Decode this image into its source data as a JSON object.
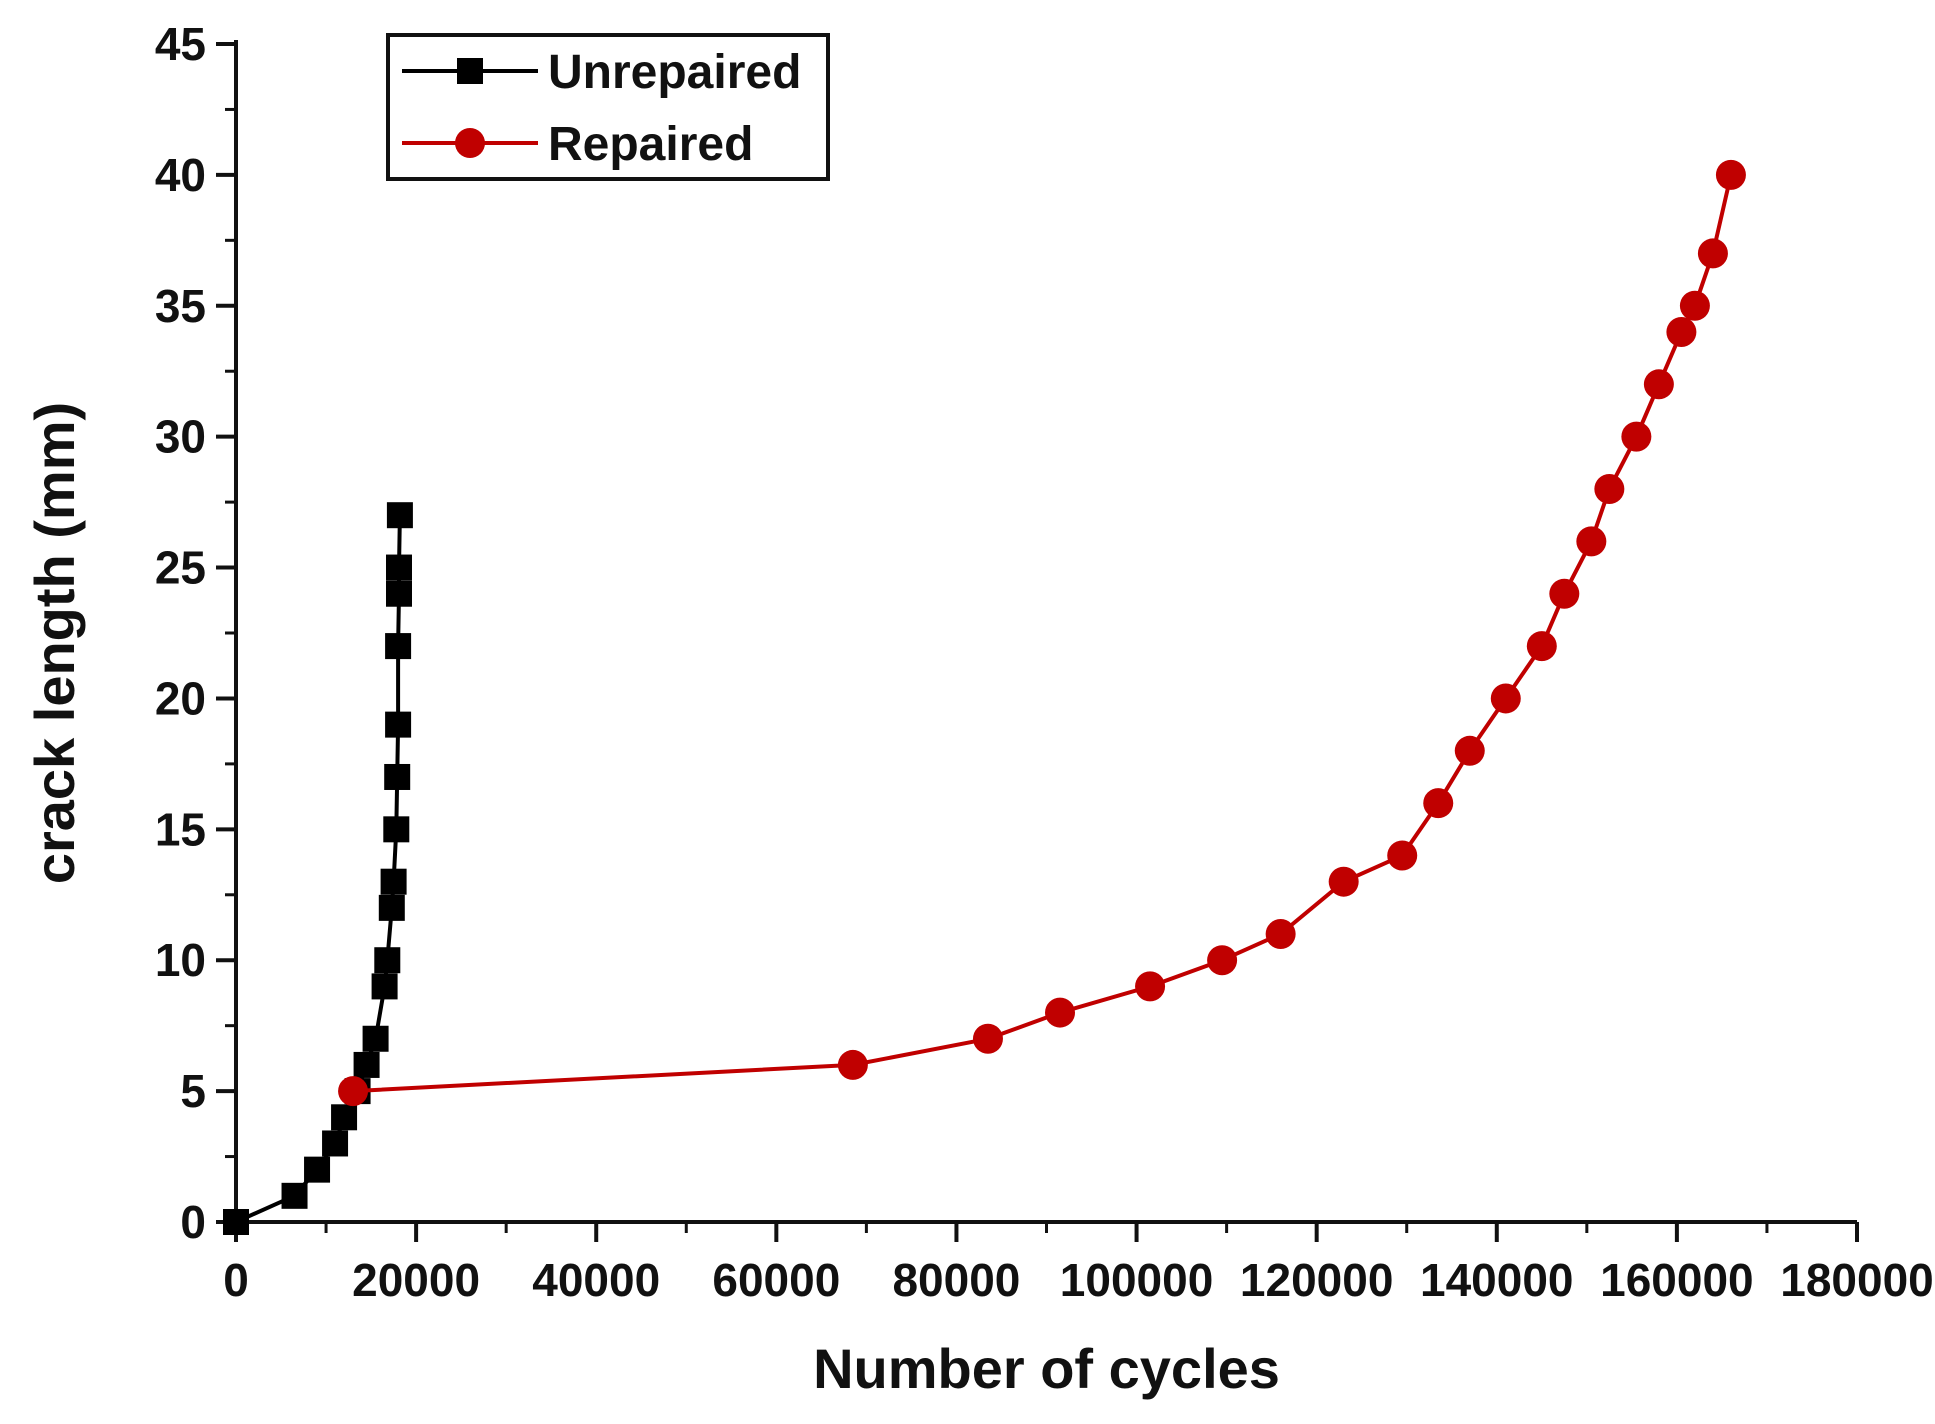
{
  "chart_data": {
    "type": "line",
    "title": "",
    "xlabel": "Number of cycles",
    "ylabel": "crack length (mm)",
    "xlim": [
      0,
      180000
    ],
    "ylim": [
      0,
      45
    ],
    "xticks": [
      0,
      20000,
      40000,
      60000,
      80000,
      100000,
      120000,
      140000,
      160000,
      180000
    ],
    "yticks": [
      0,
      5,
      10,
      15,
      20,
      25,
      30,
      35,
      40,
      45
    ],
    "xtick_labels": [
      "0",
      "20000",
      "40000",
      "60000",
      "80000",
      "100000",
      "120000",
      "140000",
      "160000",
      "180000"
    ],
    "ytick_labels": [
      "0",
      "5",
      "10",
      "15",
      "20",
      "25",
      "30",
      "35",
      "40",
      "45"
    ],
    "grid": false,
    "legend": {
      "position": "top-left",
      "entries": [
        "Unrepaired",
        "Repaired"
      ]
    },
    "series": [
      {
        "name": "Unrepaired",
        "color": "#000000",
        "marker": "square",
        "points": [
          {
            "x": 0,
            "y": 0
          },
          {
            "x": 6500,
            "y": 1
          },
          {
            "x": 9000,
            "y": 2
          },
          {
            "x": 11000,
            "y": 3
          },
          {
            "x": 12000,
            "y": 4
          },
          {
            "x": 13500,
            "y": 5
          },
          {
            "x": 14500,
            "y": 6
          },
          {
            "x": 15500,
            "y": 7
          },
          {
            "x": 16500,
            "y": 9
          },
          {
            "x": 16800,
            "y": 10
          },
          {
            "x": 17300,
            "y": 12
          },
          {
            "x": 17500,
            "y": 13
          },
          {
            "x": 17800,
            "y": 15
          },
          {
            "x": 17900,
            "y": 17
          },
          {
            "x": 18000,
            "y": 19
          },
          {
            "x": 18000,
            "y": 22
          },
          {
            "x": 18100,
            "y": 24
          },
          {
            "x": 18100,
            "y": 25
          },
          {
            "x": 18200,
            "y": 27
          }
        ]
      },
      {
        "name": "Repaired",
        "color": "#c00000",
        "marker": "circle",
        "points": [
          {
            "x": 13000,
            "y": 5
          },
          {
            "x": 68500,
            "y": 6
          },
          {
            "x": 83500,
            "y": 7
          },
          {
            "x": 91500,
            "y": 8
          },
          {
            "x": 101500,
            "y": 9
          },
          {
            "x": 109500,
            "y": 10
          },
          {
            "x": 116000,
            "y": 11
          },
          {
            "x": 123000,
            "y": 13
          },
          {
            "x": 129500,
            "y": 14
          },
          {
            "x": 133500,
            "y": 16
          },
          {
            "x": 137000,
            "y": 18
          },
          {
            "x": 141000,
            "y": 20
          },
          {
            "x": 145000,
            "y": 22
          },
          {
            "x": 147500,
            "y": 24
          },
          {
            "x": 150500,
            "y": 26
          },
          {
            "x": 152500,
            "y": 28
          },
          {
            "x": 155500,
            "y": 30
          },
          {
            "x": 158000,
            "y": 32
          },
          {
            "x": 160500,
            "y": 34
          },
          {
            "x": 162000,
            "y": 35
          },
          {
            "x": 164000,
            "y": 37
          },
          {
            "x": 166000,
            "y": 40
          }
        ]
      }
    ]
  }
}
